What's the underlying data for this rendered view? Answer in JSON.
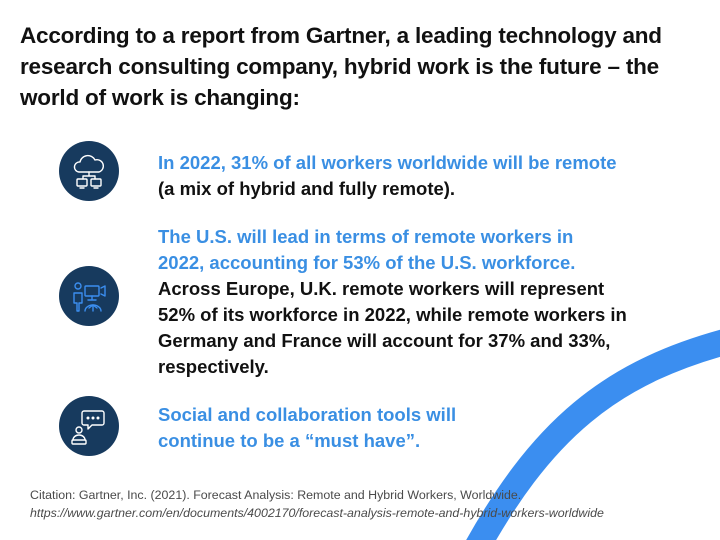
{
  "heading": "According to a report from Gartner, a leading technology and research consulting company, hybrid work is the future – the world of work is changing:",
  "points": [
    {
      "icon": "cloud-computers-icon",
      "highlight": "In 2022, 31% of all workers worldwide will be remote",
      "body": "(a mix of hybrid and fully remote)."
    },
    {
      "icon": "remote-worker-icon",
      "highlight": "The U.S. will lead in terms of remote workers in 2022, accounting for 53% of the U.S. workforce.",
      "body": "Across Europe, U.K. remote workers will represent 52% of its workforce in 2022, while remote workers in Germany and France will account for 37% and 33%, respectively."
    },
    {
      "icon": "chat-user-laptop-icon",
      "highlight": "Social and collaboration tools will continue to be a “must have”.",
      "body": ""
    }
  ],
  "citation": {
    "text": "Citation: Gartner, Inc. (2021). Forecast Analysis: Remote and Hybrid Workers, Worldwide.",
    "url": "https://www.gartner.com/en/documents/4002170/forecast-analysis-remote-and-hybrid-workers-worldwide"
  },
  "colors": {
    "accent": "#3a8fe3",
    "icon_background": "#173a5e",
    "arc": "#3b8ef0",
    "text": "#111111"
  }
}
